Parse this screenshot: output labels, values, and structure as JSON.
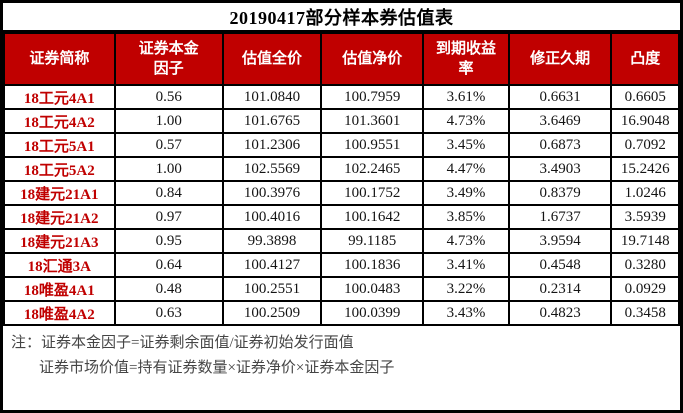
{
  "title": "20190417部分样本券估值表",
  "colors": {
    "header_bg": "#c00000",
    "header_text": "#ffffff",
    "bond_name_text": "#c00000",
    "value_text": "#141414",
    "grid_line": "#000000",
    "notes_text": "#454545"
  },
  "table": {
    "columns": [
      "证券简称",
      "证券本金\n因子",
      "估值全价",
      "估值净价",
      "到期收益\n率",
      "修正久期",
      "凸度"
    ],
    "rows": [
      {
        "name": "18工元4A1",
        "values": [
          "0.56",
          "101.0840",
          "100.7959",
          "3.61%",
          "0.6631",
          "0.6605"
        ]
      },
      {
        "name": "18工元4A2",
        "values": [
          "1.00",
          "101.6765",
          "101.3601",
          "4.73%",
          "3.6469",
          "16.9048"
        ]
      },
      {
        "name": "18工元5A1",
        "values": [
          "0.57",
          "101.2306",
          "100.9551",
          "3.45%",
          "0.6873",
          "0.7092"
        ]
      },
      {
        "name": "18工元5A2",
        "values": [
          "1.00",
          "102.5569",
          "102.2465",
          "4.47%",
          "3.4903",
          "15.2426"
        ]
      },
      {
        "name": "18建元21A1",
        "values": [
          "0.84",
          "100.3976",
          "100.1752",
          "3.49%",
          "0.8379",
          "1.0246"
        ]
      },
      {
        "name": "18建元21A2",
        "values": [
          "0.97",
          "100.4016",
          "100.1642",
          "3.85%",
          "1.6737",
          "3.5939"
        ]
      },
      {
        "name": "18建元21A3",
        "values": [
          "0.95",
          "99.3898",
          "99.1185",
          "4.73%",
          "3.9594",
          "19.7148"
        ]
      },
      {
        "name": "18汇通3A",
        "values": [
          "0.64",
          "100.4127",
          "100.1836",
          "3.41%",
          "0.4548",
          "0.3280"
        ]
      },
      {
        "name": "18唯盈4A1",
        "values": [
          "0.48",
          "100.2551",
          "100.0483",
          "3.22%",
          "0.2314",
          "0.0929"
        ]
      },
      {
        "name": "18唯盈4A2",
        "values": [
          "0.63",
          "100.2509",
          "100.0399",
          "3.43%",
          "0.4823",
          "0.3458"
        ]
      }
    ]
  },
  "notes": {
    "label": "注：",
    "line1": "证券本金因子=证券剩余面值/证券初始发行面值",
    "line2": "证券市场价值=持有证券数量×证券净价×证券本金因子"
  }
}
